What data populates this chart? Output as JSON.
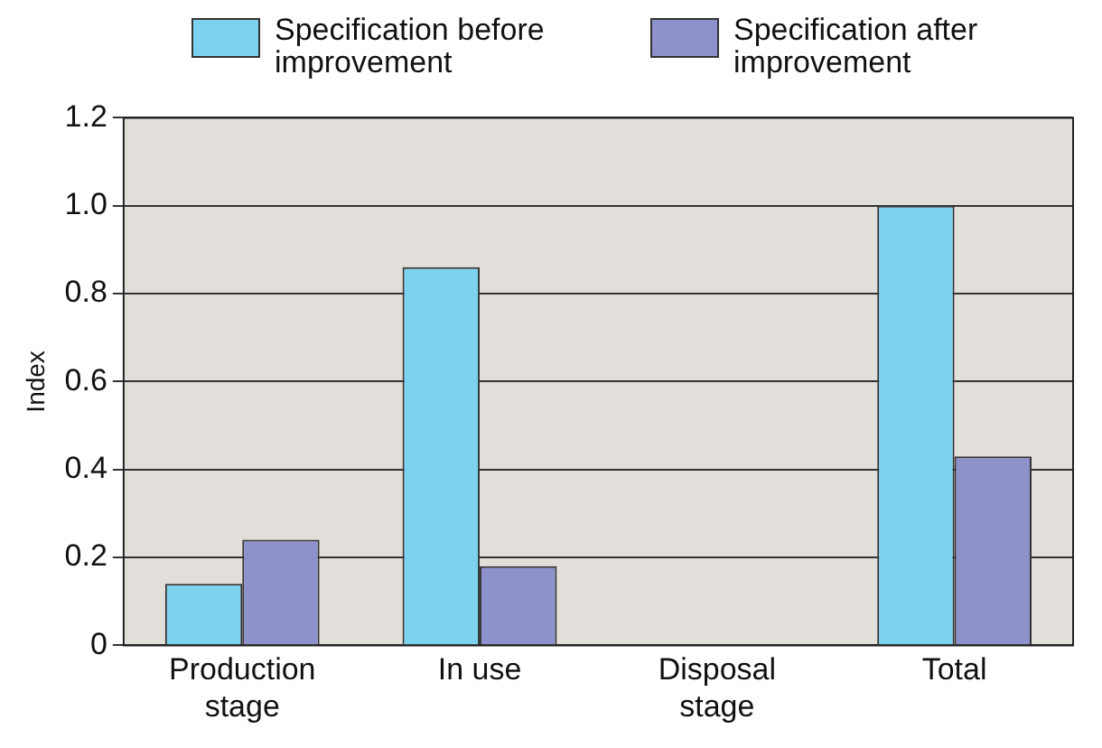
{
  "chart_data": {
    "type": "bar",
    "ylabel": "Index",
    "categories": [
      "Production stage",
      "In use",
      "Disposal stage",
      "Total"
    ],
    "series": [
      {
        "name": "Specification before improvement",
        "color": "#7dd3ef",
        "values": [
          0.14,
          0.86,
          0,
          1.0
        ]
      },
      {
        "name": "Specification after improvement",
        "color": "#8e92cc",
        "values": [
          0.24,
          0.18,
          0,
          0.43
        ]
      }
    ],
    "ylim": [
      0,
      1.2
    ],
    "yticks": [
      0,
      {
        "value": 0.2,
        "label": "0.2"
      },
      {
        "value": 0.4,
        "label": "0.4"
      },
      {
        "value": 0.6,
        "label": "0.6"
      },
      {
        "value": 0.8,
        "label": "0.8"
      },
      {
        "value": 1.0,
        "label": "1.0"
      },
      {
        "value": 1.2,
        "label": "1.2"
      }
    ],
    "grid": "y",
    "legend": "top"
  }
}
